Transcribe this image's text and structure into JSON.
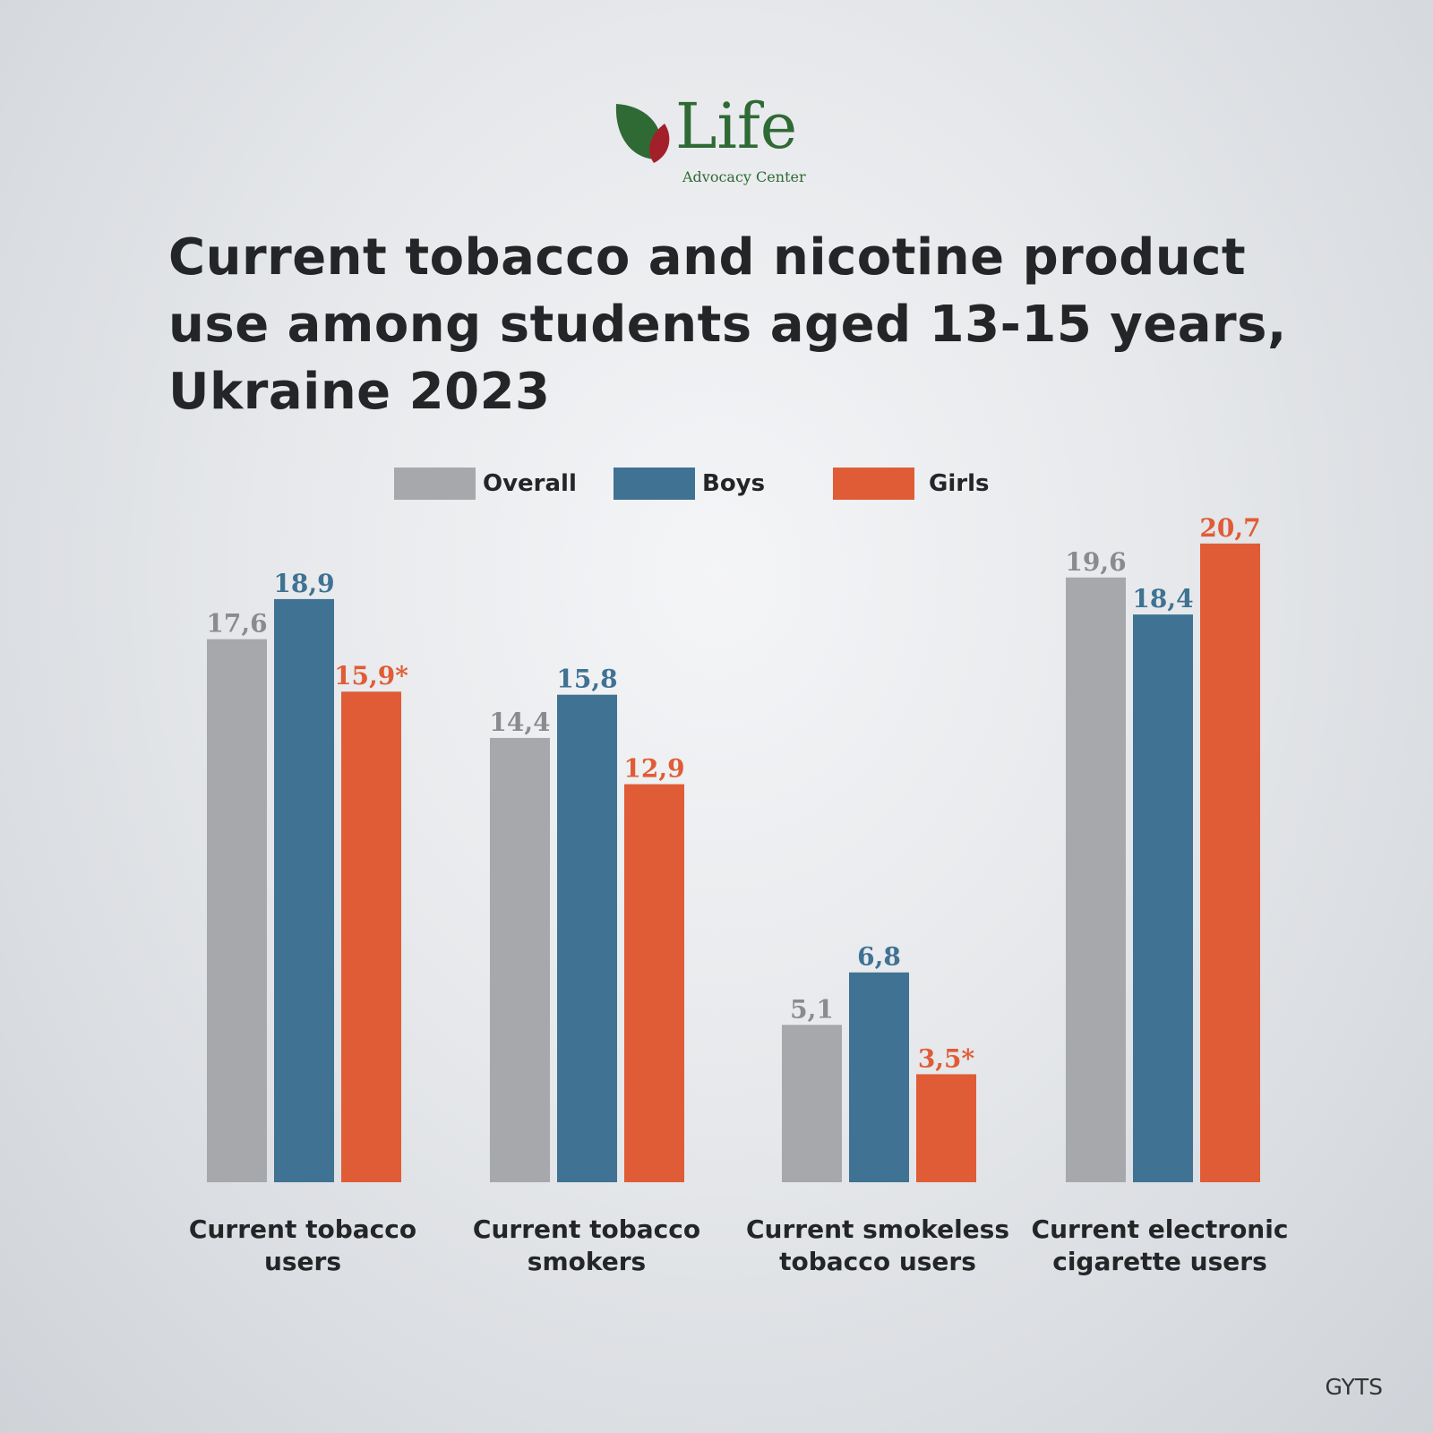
{
  "logo": {
    "word": "Life",
    "subtitle": "Advocacy Center"
  },
  "source": "GYTS",
  "chart_data": {
    "type": "bar",
    "title": "Current tobacco and nicotine product use among students aged 13-15 years, Ukraine 2023",
    "categories": [
      "Current tobacco users",
      "Current tobacco smokers",
      "Current smokeless tobacco users",
      "Current electronic cigarette users"
    ],
    "series": [
      {
        "name": "Overall",
        "color": "#a7a8ac",
        "values": [
          17.6,
          14.4,
          5.1,
          19.6
        ],
        "labels": [
          "17,6",
          "14,4",
          "5,1",
          "19,6"
        ]
      },
      {
        "name": "Boys",
        "color": "#3f7293",
        "values": [
          18.9,
          15.8,
          6.8,
          18.4
        ],
        "labels": [
          "18,9",
          "15,8",
          "6,8",
          "18,4"
        ]
      },
      {
        "name": "Girls",
        "color": "#e05c36",
        "values": [
          15.9,
          12.9,
          3.5,
          20.7
        ],
        "labels": [
          "15,9*",
          "12,9",
          "3,5*",
          "20,7"
        ]
      }
    ],
    "xlabel": "",
    "ylabel": "",
    "ylim": [
      0,
      21
    ],
    "grid": false,
    "legend_position": "top-center"
  }
}
